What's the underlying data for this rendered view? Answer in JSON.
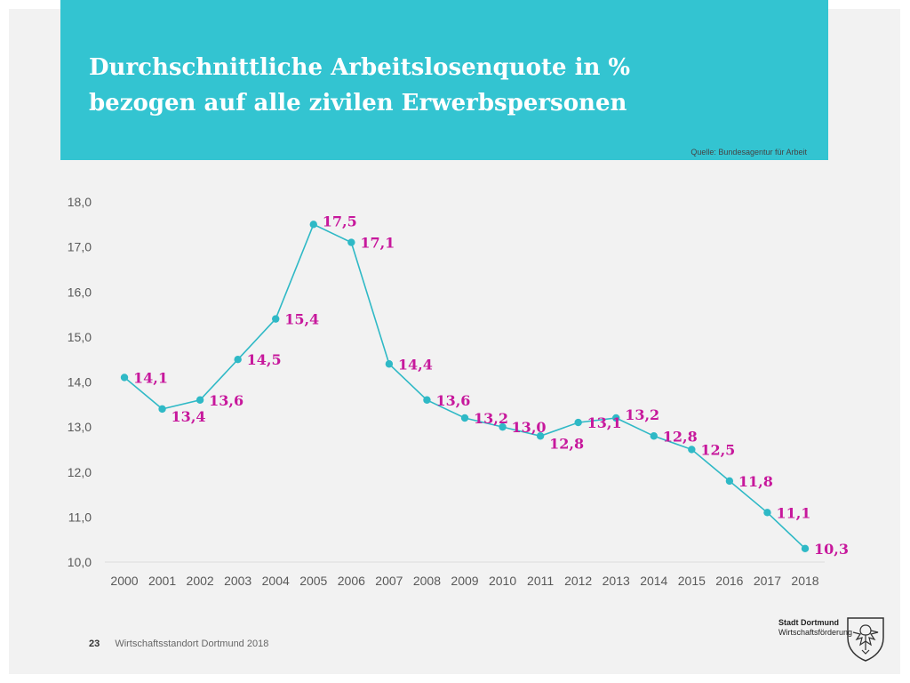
{
  "header": {
    "title_line1": "Durchschnittliche Arbeitslosenquote in %",
    "title_line2": "bezogen auf alle zivilen Erwerbspersonen",
    "source": "Quelle: Bundesagentur für Arbeit"
  },
  "footer": {
    "page_number": "23",
    "text": "Wirtschaftsstandort Dortmund 2018"
  },
  "logo": {
    "line1": "Stadt Dortmund",
    "line2": "Wirtschaftsförderung",
    "icon": "dortmund-eagle-crest-icon"
  },
  "colors": {
    "header": "#33c4d1",
    "line": "#2fb9c6",
    "marker": "#2fb9c6",
    "data_label": "#c7189c",
    "axis_text": "#595959",
    "background": "#f2f2f2"
  },
  "chart_data": {
    "type": "line",
    "x": [
      "2000",
      "2001",
      "2002",
      "2003",
      "2004",
      "2005",
      "2006",
      "2007",
      "2008",
      "2009",
      "2010",
      "2011",
      "2012",
      "2013",
      "2014",
      "2015",
      "2016",
      "2017",
      "2018"
    ],
    "series": [
      {
        "values": [
          14.1,
          13.4,
          13.6,
          14.5,
          15.4,
          17.5,
          17.1,
          14.4,
          13.6,
          13.2,
          13.0,
          12.8,
          13.1,
          13.2,
          12.8,
          12.5,
          11.8,
          11.1,
          10.3
        ]
      }
    ],
    "data_labels": [
      "14,1",
      "13,4",
      "13,6",
      "14,5",
      "15,4",
      "17,5",
      "17,1",
      "14,4",
      "13,6",
      "13,2",
      "13,0",
      "12,8",
      "13,1",
      "13,2",
      "12,8",
      "12,5",
      "11,8",
      "11,1",
      "10,3"
    ],
    "y_ticks": [
      "10,0",
      "11,0",
      "12,0",
      "13,0",
      "14,0",
      "15,0",
      "16,0",
      "17,0",
      "18,0"
    ],
    "ylim": [
      10,
      18
    ],
    "grid": false,
    "legend": "none"
  }
}
